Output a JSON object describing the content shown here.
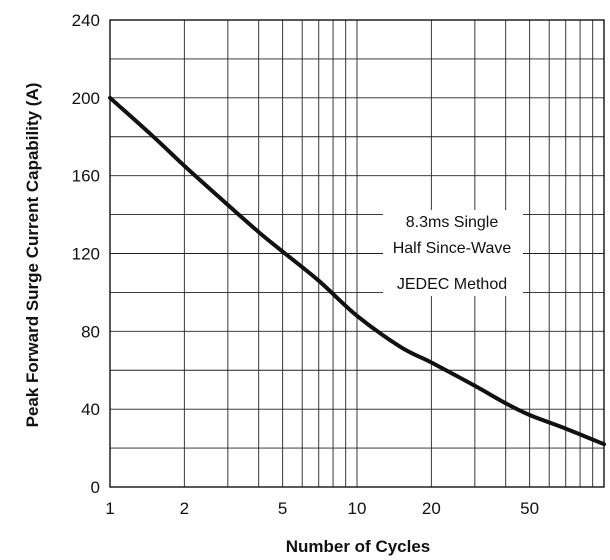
{
  "chart_data": {
    "type": "line",
    "xscale": "log",
    "xlim": [
      1,
      100
    ],
    "ylim": [
      0,
      240
    ],
    "xticks": [
      1,
      2,
      5,
      10,
      20,
      50
    ],
    "xtick_labels": [
      "1",
      "2",
      "5",
      "10",
      "20",
      "50"
    ],
    "yticks": [
      0,
      40,
      80,
      120,
      160,
      200,
      240
    ],
    "ytick_labels": [
      "0",
      "40",
      "80",
      "120",
      "160",
      "200",
      "240"
    ],
    "xlabel": "Number of Cycles",
    "ylabel": "Peak  Forward Surge Current Capability (A)",
    "grid": true,
    "annotation": [
      "8.3ms Single",
      "Half Since-Wave",
      "JEDEC Method"
    ],
    "series": [
      {
        "x": [
          1,
          1.5,
          2,
          3,
          4,
          5,
          7,
          10,
          15,
          20,
          30,
          40,
          50,
          70,
          100
        ],
        "y": [
          200,
          180,
          165,
          145,
          131,
          121,
          106,
          88,
          72,
          64,
          52,
          43,
          37,
          30,
          22
        ]
      }
    ],
    "line_color": "#111111"
  }
}
